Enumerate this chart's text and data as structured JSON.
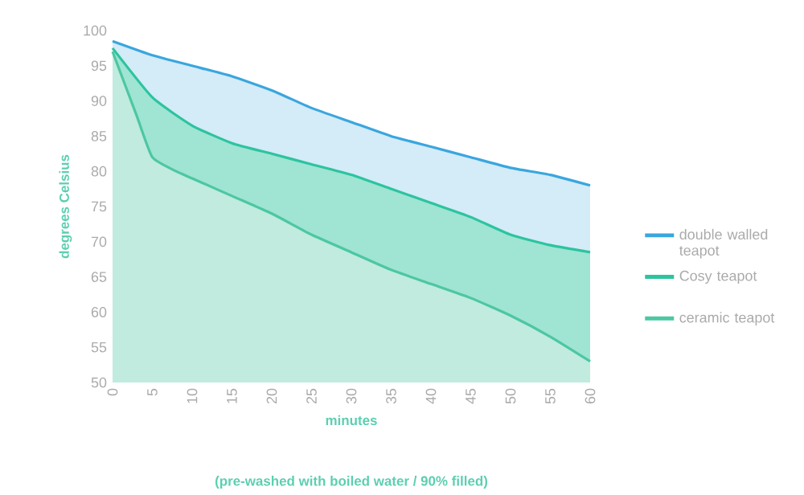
{
  "chart_data": {
    "type": "area",
    "xlabel": "minutes",
    "ylabel": "degrees Celsius",
    "annotations": [
      "(pre-washed with boiled water / 90% filled)"
    ],
    "xlim": [
      0,
      60
    ],
    "ylim": [
      50,
      100
    ],
    "xticks": [
      0,
      5,
      10,
      15,
      20,
      25,
      30,
      35,
      40,
      45,
      50,
      55,
      60
    ],
    "yticks": [
      50,
      55,
      60,
      65,
      70,
      75,
      80,
      85,
      90,
      95,
      100
    ],
    "legend": "right",
    "grid": false,
    "series": [
      {
        "name": "double walled teapot",
        "color": "#3aa6de",
        "x": [
          0,
          5,
          10,
          15,
          20,
          25,
          30,
          35,
          40,
          45,
          50,
          55,
          60
        ],
        "values": [
          98.5,
          96.5,
          95,
          93.5,
          91.5,
          89,
          87,
          85,
          83.5,
          82,
          80.5,
          79.5,
          78
        ]
      },
      {
        "name": "Cosy teapot",
        "color": "#2cc49e",
        "x": [
          0,
          5,
          10,
          15,
          20,
          25,
          30,
          35,
          40,
          45,
          50,
          55,
          60
        ],
        "values": [
          97.5,
          90.5,
          86.5,
          84,
          82.5,
          81,
          79.5,
          77.5,
          75.5,
          73.5,
          71,
          69.5,
          68.5
        ]
      },
      {
        "name": "ceramic teapot",
        "color": "#4cc7a2",
        "x": [
          0,
          3,
          5,
          8,
          10,
          15,
          20,
          25,
          30,
          35,
          40,
          45,
          50,
          55,
          60
        ],
        "values": [
          97,
          88,
          82,
          80,
          79,
          76.5,
          74,
          71,
          68.5,
          66,
          64,
          62,
          59.5,
          56.5,
          53
        ]
      }
    ]
  }
}
